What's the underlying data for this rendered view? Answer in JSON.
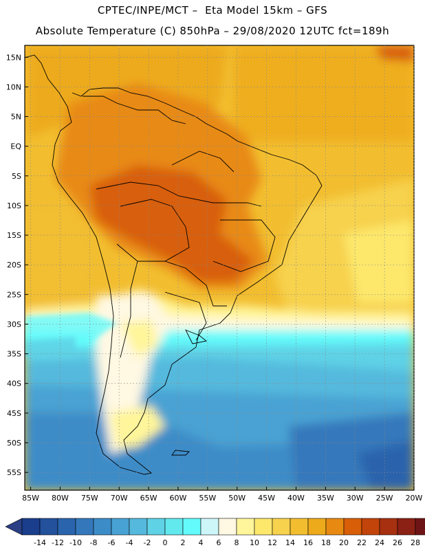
{
  "header": {
    "line1": "CPTEC/INPE/MCT –  Eta Model 15km – GFS",
    "line2": "Absolute Temperature (C) 850hPa – 29/08/2020 12UTC fct=189h"
  },
  "map": {
    "lat_labels": [
      "15N",
      "10N",
      "5N",
      "EQ",
      "5S",
      "10S",
      "15S",
      "20S",
      "25S",
      "30S",
      "35S",
      "40S",
      "45S",
      "50S",
      "55S"
    ],
    "lon_labels": [
      "85W",
      "80W",
      "75W",
      "70W",
      "65W",
      "60W",
      "55W",
      "50W",
      "45W",
      "40W",
      "35W",
      "30W",
      "25W",
      "20W"
    ],
    "lon_range": [
      -86,
      -20
    ],
    "lat_range": [
      -58,
      17
    ]
  },
  "colorbar": {
    "levels": [
      "-14",
      "-12",
      "-10",
      "-8",
      "-6",
      "-4",
      "-2",
      "0",
      "2",
      "4",
      "6",
      "8",
      "10",
      "12",
      "14",
      "16",
      "18",
      "20",
      "22",
      "24",
      "26",
      "28"
    ],
    "colors": [
      "#1a3d8c",
      "#23519c",
      "#2a64ac",
      "#3478bb",
      "#3c8cc8",
      "#48a2d3",
      "#55b9dd",
      "#5fd2e6",
      "#62e9ee",
      "#63fbfb",
      "#cdf6f9",
      "#fff8e2",
      "#fff59a",
      "#fde86c",
      "#f7d24d",
      "#f2be30",
      "#edaa1a",
      "#e88a12",
      "#d85e08",
      "#c2440a",
      "#a63010",
      "#8b2014",
      "#6f1416"
    ],
    "under_color": "#2b3f85",
    "over_color": "#750d22"
  }
}
